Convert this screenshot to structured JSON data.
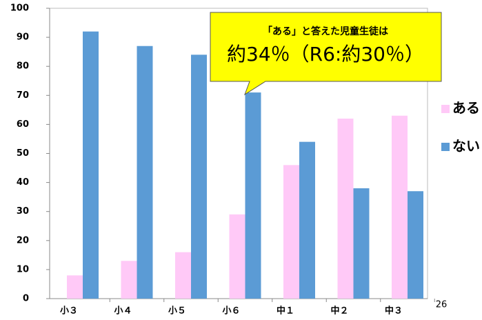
{
  "chart_data": {
    "type": "bar",
    "categories": [
      "小３",
      "小４",
      "小５",
      "小６",
      "中１",
      "中２",
      "中３"
    ],
    "series": [
      {
        "name": "ある",
        "color": "#ffc9f7",
        "values": [
          8,
          13,
          16,
          29,
          46,
          62,
          63
        ]
      },
      {
        "name": "ない",
        "color": "#5b9bd5",
        "values": [
          92,
          87,
          84,
          71,
          54,
          38,
          37
        ]
      }
    ],
    "ylim": [
      0,
      100
    ],
    "yticks": [
      0,
      10,
      20,
      30,
      40,
      50,
      60,
      70,
      80,
      90,
      100
    ],
    "grid": false,
    "legend": "right",
    "annotations": [
      "「ある」と答えた児童生徒は",
      "約34％（R6:約30％）"
    ]
  },
  "page_number": "26"
}
